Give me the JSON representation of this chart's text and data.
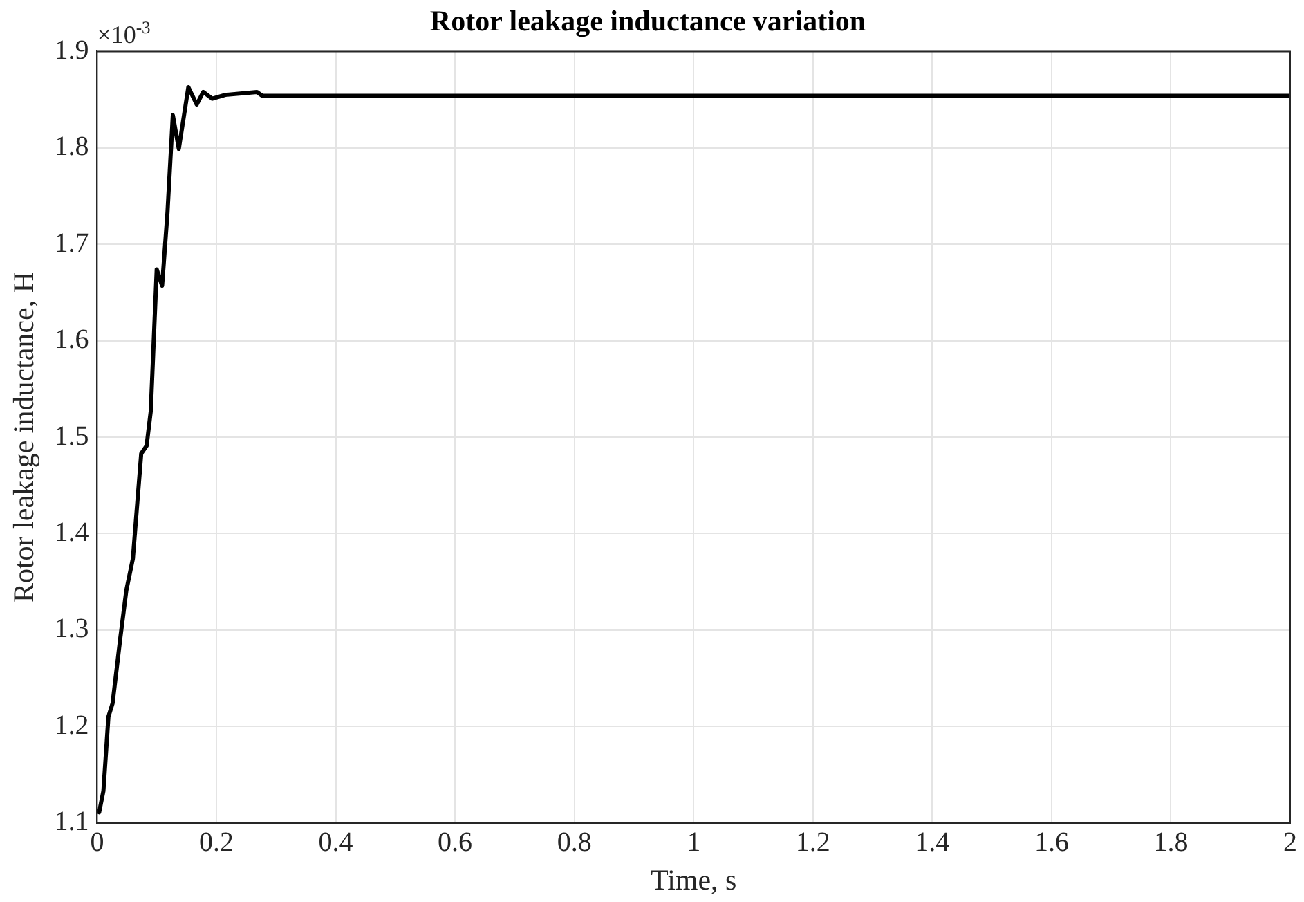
{
  "chart_data": {
    "type": "line",
    "title": "Rotor leakage inductance variation",
    "xlabel": "Time, s",
    "ylabel": "Rotor leakage inductance, H",
    "annotations": [
      "×10$^{-3}$"
    ],
    "x": [
      0,
      0.0035,
      0.0106,
      0.019,
      0.026,
      0.039,
      0.049,
      0.06,
      0.074,
      0.083,
      0.09,
      0.1,
      0.109,
      0.118,
      0.127,
      0.137,
      0.153,
      0.167,
      0.178,
      0.193,
      0.215,
      0.268,
      0.277,
      0.3,
      0.5,
      1,
      1.5,
      2
    ],
    "series": [
      {
        "color": "#000000",
        "values": [
          1.112,
          1.111,
          1.133,
          1.21,
          1.224,
          1.292,
          1.341,
          1.374,
          1.483,
          1.491,
          1.527,
          1.674,
          1.657,
          1.733,
          1.834,
          1.799,
          1.863,
          1.845,
          1.858,
          1.851,
          1.855,
          1.858,
          1.854,
          1.854,
          1.854,
          1.854,
          1.854,
          1.854
        ]
      }
    ],
    "xlim": [
      0,
      2
    ],
    "xticks": [
      0,
      0.2,
      0.4,
      0.6,
      0.8,
      1,
      1.2,
      1.4,
      1.6,
      1.8,
      2
    ],
    "ylim": [
      1.1,
      1.9
    ],
    "yticks": [
      1.1,
      1.2,
      1.3,
      1.4,
      1.5,
      1.6,
      1.7,
      1.8,
      1.9
    ],
    "grid": true,
    "legend": false,
    "marker": "none",
    "line_style": "solid"
  }
}
